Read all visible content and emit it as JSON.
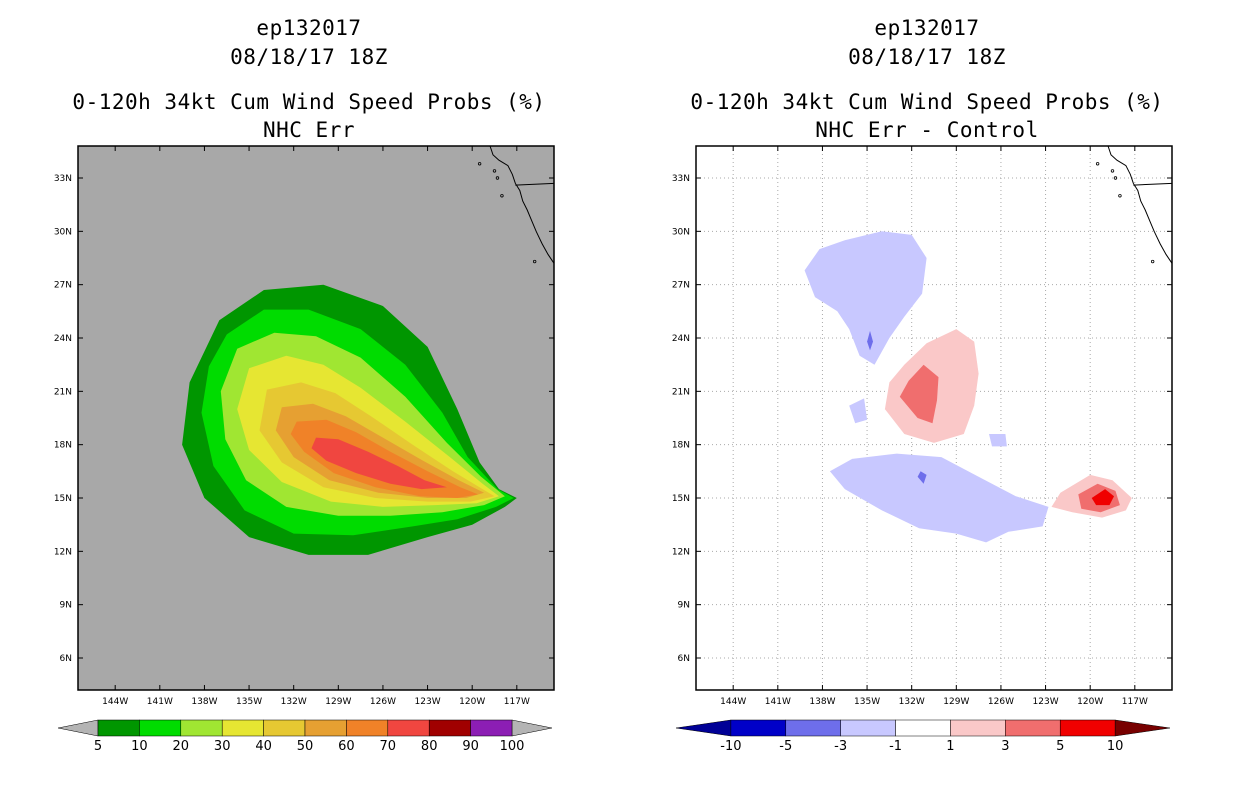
{
  "panels": [
    {
      "title_line1": "ep132017",
      "title_line2": "08/18/17 18Z",
      "title_line3": "0-120h 34kt Cum Wind Speed Probs (%)",
      "title_line4": "NHC Err",
      "background": "#a8a8a8",
      "colorbar": {
        "labels": [
          "5",
          "10",
          "20",
          "30",
          "40",
          "50",
          "60",
          "70",
          "80",
          "90",
          "100"
        ],
        "colors": [
          "#009600",
          "#00dc00",
          "#a0e632",
          "#e6e632",
          "#e6c832",
          "#e6a032",
          "#f08228",
          "#f04640",
          "#a00000",
          "#8c1eb4"
        ],
        "under_color": "#b4b4b4",
        "over_color": "#b4b4b4"
      }
    },
    {
      "title_line1": "ep132017",
      "title_line2": "08/18/17 18Z",
      "title_line3": "0-120h 34kt Cum Wind Speed Probs (%)",
      "title_line4": "NHC Err - Control",
      "background": "#ffffff",
      "colorbar": {
        "labels": [
          "-10",
          "-5",
          "-3",
          "-1",
          "1",
          "3",
          "5",
          "10"
        ],
        "colors": [
          "#0000c8",
          "#6e6eeb",
          "#c8c8ff",
          "#ffffff",
          "#fac8c8",
          "#f06e6e",
          "#f00000"
        ],
        "under_color": "#000096",
        "over_color": "#780000"
      }
    }
  ],
  "chart_data": [
    {
      "type": "heatmap",
      "title": "0-120h 34kt Cum Wind Speed Probs (%) — NHC Err",
      "xlabel": "",
      "ylabel": "",
      "xticks": [
        "144W",
        "141W",
        "138W",
        "135W",
        "132W",
        "129W",
        "126W",
        "123W",
        "120W",
        "117W"
      ],
      "yticks": [
        "33N",
        "30N",
        "27N",
        "24N",
        "21N",
        "18N",
        "15N",
        "12N",
        "9N",
        "6N"
      ],
      "xlim": [
        -146.5,
        -114.5
      ],
      "ylim": [
        4.2,
        34.8
      ],
      "units": "%",
      "levels": [
        5,
        10,
        20,
        30,
        40,
        50,
        60,
        70,
        80,
        90,
        100
      ],
      "contours": [
        {
          "level": 5,
          "points": [
            [
              -137,
              25
            ],
            [
              -134,
              26.7
            ],
            [
              -130,
              27
            ],
            [
              -126,
              25.8
            ],
            [
              -123,
              23.5
            ],
            [
              -121,
              20
            ],
            [
              -119.5,
              17
            ],
            [
              -118.2,
              15.5
            ],
            [
              -117,
              15
            ],
            [
              -117.8,
              14.5
            ],
            [
              -120,
              13.5
            ],
            [
              -123,
              12.8
            ],
            [
              -127,
              11.8
            ],
            [
              -131,
              11.8
            ],
            [
              -135,
              12.8
            ],
            [
              -138,
              15
            ],
            [
              -139.5,
              18
            ],
            [
              -139,
              21.5
            ]
          ]
        },
        {
          "level": 10,
          "points": [
            [
              -136.5,
              24.2
            ],
            [
              -134,
              25.6
            ],
            [
              -131,
              25.6
            ],
            [
              -127.5,
              24.5
            ],
            [
              -124.5,
              22.5
            ],
            [
              -122,
              19.8
            ],
            [
              -120.3,
              17.3
            ],
            [
              -118.3,
              15.5
            ],
            [
              -117.2,
              15
            ],
            [
              -118.4,
              14.5
            ],
            [
              -121,
              13.8
            ],
            [
              -124,
              13.4
            ],
            [
              -128,
              12.9
            ],
            [
              -132,
              13
            ],
            [
              -135.3,
              14.3
            ],
            [
              -137.4,
              16.8
            ],
            [
              -138.2,
              19.8
            ],
            [
              -137.7,
              22.4
            ]
          ]
        },
        {
          "level": 20,
          "points": [
            [
              -135.8,
              23.4
            ],
            [
              -133.3,
              24.3
            ],
            [
              -130.5,
              24.1
            ],
            [
              -127.5,
              22.9
            ],
            [
              -124.5,
              20.7
            ],
            [
              -121.7,
              18.1
            ],
            [
              -119.4,
              16.2
            ],
            [
              -117.8,
              15.1
            ],
            [
              -119.2,
              14.6
            ],
            [
              -122,
              14.2
            ],
            [
              -125.5,
              14
            ],
            [
              -129,
              14
            ],
            [
              -132.5,
              14.5
            ],
            [
              -135.2,
              16
            ],
            [
              -136.6,
              18.3
            ],
            [
              -136.9,
              21
            ]
          ]
        },
        {
          "level": 30,
          "points": [
            [
              -135,
              22.3
            ],
            [
              -132.5,
              23
            ],
            [
              -130,
              22.5
            ],
            [
              -127.5,
              21.2
            ],
            [
              -124.5,
              19.3
            ],
            [
              -121.5,
              17.3
            ],
            [
              -119.3,
              15.8
            ],
            [
              -118.2,
              15.1
            ],
            [
              -119.7,
              14.7
            ],
            [
              -122.5,
              14.6
            ],
            [
              -126,
              14.5
            ],
            [
              -129.5,
              14.8
            ],
            [
              -132.8,
              15.9
            ],
            [
              -135,
              17.7
            ],
            [
              -135.8,
              20
            ]
          ]
        },
        {
          "level": 40,
          "points": [
            [
              -133.8,
              21.1
            ],
            [
              -131.5,
              21.5
            ],
            [
              -129.2,
              20.9
            ],
            [
              -126.8,
              19.6
            ],
            [
              -124,
              18
            ],
            [
              -121.3,
              16.5
            ],
            [
              -119.3,
              15.5
            ],
            [
              -118.5,
              15.1
            ],
            [
              -120.1,
              14.8
            ],
            [
              -123,
              14.8
            ],
            [
              -126.5,
              15
            ],
            [
              -130,
              15.6
            ],
            [
              -132.8,
              17
            ],
            [
              -134.3,
              18.8
            ]
          ]
        },
        {
          "level": 50,
          "points": [
            [
              -132.8,
              20.1
            ],
            [
              -130.7,
              20.3
            ],
            [
              -128.5,
              19.6
            ],
            [
              -126,
              18.4
            ],
            [
              -123.3,
              17.1
            ],
            [
              -120.9,
              16
            ],
            [
              -119.2,
              15.3
            ],
            [
              -120.4,
              15
            ],
            [
              -123,
              15
            ],
            [
              -126.3,
              15.3
            ],
            [
              -129.6,
              16
            ],
            [
              -132,
              17.3
            ],
            [
              -133.2,
              18.8
            ]
          ]
        },
        {
          "level": 60,
          "points": [
            [
              -131.8,
              19.3
            ],
            [
              -129.8,
              19.4
            ],
            [
              -127.8,
              18.7
            ],
            [
              -125.5,
              17.6
            ],
            [
              -123,
              16.5
            ],
            [
              -120.8,
              15.6
            ],
            [
              -119.6,
              15.2
            ],
            [
              -121,
              15
            ],
            [
              -123.5,
              15.1
            ],
            [
              -126.5,
              15.6
            ],
            [
              -129.3,
              16.4
            ],
            [
              -131.3,
              17.6
            ],
            [
              -132.2,
              18.6
            ]
          ]
        },
        {
          "level": 70,
          "points": [
            [
              -130.5,
              18.4
            ],
            [
              -129,
              18.3
            ],
            [
              -127,
              17.6
            ],
            [
              -125,
              16.8
            ],
            [
              -123.2,
              16
            ],
            [
              -121.7,
              15.6
            ],
            [
              -123.4,
              15.5
            ],
            [
              -125.5,
              15.8
            ],
            [
              -127.8,
              16.4
            ],
            [
              -129.8,
              17.1
            ],
            [
              -130.8,
              17.8
            ]
          ]
        }
      ]
    },
    {
      "type": "heatmap",
      "title": "0-120h 34kt Cum Wind Speed Probs (%) — NHC Err - Control",
      "xlabel": "",
      "ylabel": "",
      "xticks": [
        "144W",
        "141W",
        "138W",
        "135W",
        "132W",
        "129W",
        "126W",
        "123W",
        "120W",
        "117W"
      ],
      "yticks": [
        "33N",
        "30N",
        "27N",
        "24N",
        "21N",
        "18N",
        "15N",
        "12N",
        "9N",
        "6N"
      ],
      "xlim": [
        -146.5,
        -114.5
      ],
      "ylim": [
        4.2,
        34.8
      ],
      "units": "% difference",
      "levels": [
        -10,
        -5,
        -3,
        -1,
        1,
        3,
        5,
        10
      ],
      "contours": [
        {
          "level": -1,
          "points": [
            [
              -136.5,
              29.5
            ],
            [
              -134,
              30
            ],
            [
              -132,
              29.8
            ],
            [
              -131,
              28.5
            ],
            [
              -131.3,
              26.5
            ],
            [
              -132.5,
              25.2
            ],
            [
              -133.5,
              24
            ],
            [
              -134.5,
              22.5
            ],
            [
              -135.5,
              23
            ],
            [
              -136.2,
              24.5
            ],
            [
              -137,
              25.5
            ],
            [
              -138.5,
              26.3
            ],
            [
              -139.2,
              27.8
            ],
            [
              -138.2,
              29
            ]
          ]
        },
        {
          "level": -1,
          "points": [
            [
              -136,
              17.2
            ],
            [
              -133,
              17.5
            ],
            [
              -130,
              17.3
            ],
            [
              -127.5,
              16.2
            ],
            [
              -125,
              15.1
            ],
            [
              -122.8,
              14.5
            ],
            [
              -123.2,
              13.4
            ],
            [
              -125.5,
              13.1
            ],
            [
              -127,
              12.5
            ],
            [
              -129,
              13
            ],
            [
              -131.5,
              13.3
            ],
            [
              -134,
              14.3
            ],
            [
              -136.5,
              15.5
            ],
            [
              -137.5,
              16.5
            ]
          ]
        },
        {
          "level": -1,
          "points": [
            [
              -136.2,
              20.2
            ],
            [
              -135.2,
              20.6
            ],
            [
              -135,
              19.4
            ],
            [
              -135.8,
              19.2
            ]
          ]
        },
        {
          "level": -1,
          "points": [
            [
              -126.8,
              18.6
            ],
            [
              -125.7,
              18.6
            ],
            [
              -125.6,
              17.9
            ],
            [
              -126.6,
              17.9
            ]
          ]
        },
        {
          "level": -3,
          "points": [
            [
              -134.8,
              24.4
            ],
            [
              -134.6,
              23.8
            ],
            [
              -134.8,
              23.3
            ],
            [
              -135,
              23.8
            ]
          ]
        },
        {
          "level": -3,
          "points": [
            [
              -131.4,
              16.5
            ],
            [
              -131,
              16.3
            ],
            [
              -131.2,
              15.8
            ],
            [
              -131.6,
              16.2
            ]
          ]
        },
        {
          "level": 1,
          "points": [
            [
              -132.5,
              22.5
            ],
            [
              -131,
              23.7
            ],
            [
              -129,
              24.5
            ],
            [
              -127.8,
              23.8
            ],
            [
              -127.5,
              22
            ],
            [
              -127.8,
              20.2
            ],
            [
              -128.5,
              18.6
            ],
            [
              -130.5,
              18.1
            ],
            [
              -132.5,
              18.6
            ],
            [
              -133.8,
              20
            ],
            [
              -133.5,
              21.5
            ]
          ]
        },
        {
          "level": 1,
          "points": [
            [
              -122,
              15.3
            ],
            [
              -120,
              16.3
            ],
            [
              -118.5,
              16
            ],
            [
              -117.2,
              15
            ],
            [
              -117.6,
              14.3
            ],
            [
              -119.2,
              13.9
            ],
            [
              -121.2,
              14.2
            ],
            [
              -122.6,
              14.5
            ]
          ]
        },
        {
          "level": 3,
          "points": [
            [
              -131.2,
              22.5
            ],
            [
              -130.2,
              21.8
            ],
            [
              -130.3,
              20.5
            ],
            [
              -130.6,
              19.2
            ],
            [
              -131.6,
              19.5
            ],
            [
              -132.8,
              20.7
            ],
            [
              -132.2,
              21.6
            ]
          ]
        },
        {
          "level": 3,
          "points": [
            [
              -120.8,
              15.2
            ],
            [
              -119.5,
              15.8
            ],
            [
              -118.3,
              15.4
            ],
            [
              -118,
              14.6
            ],
            [
              -119.3,
              14.2
            ],
            [
              -120.6,
              14.4
            ]
          ]
        },
        {
          "level": 5,
          "points": [
            [
              -119.9,
              15
            ],
            [
              -119,
              15.5
            ],
            [
              -118.4,
              15.1
            ],
            [
              -118.7,
              14.6
            ],
            [
              -119.6,
              14.6
            ]
          ]
        }
      ]
    }
  ]
}
